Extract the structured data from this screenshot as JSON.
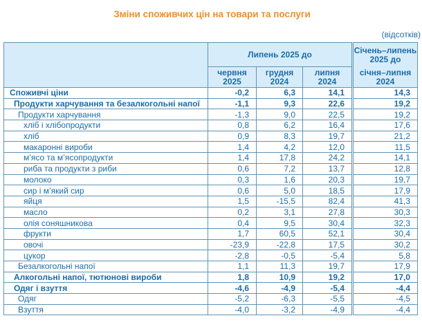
{
  "title": "Зміни споживчих цін на товари та послуги",
  "unit_note": "(відсотків)",
  "columns": {
    "group": {
      "label": "Липень 2025 до",
      "subs": [
        "червня\n2025",
        "грудня\n2024",
        "липня\n2024"
      ]
    },
    "cumulative": {
      "label": "Січень–липень\n2025 до",
      "sub": "січня–липня\n2024"
    }
  },
  "table": {
    "rows": [
      {
        "label": "Споживчі ціни",
        "level": 0,
        "bold": true,
        "values": [
          "-0,2",
          "6,3",
          "14,1",
          "14,3"
        ]
      },
      {
        "label": "Продукти харчування та безалкогольні напої",
        "level": 1,
        "bold": true,
        "values": [
          "-1,1",
          "9,3",
          "22,6",
          "19,2"
        ]
      },
      {
        "label": "Продукти харчування",
        "level": 2,
        "bold": false,
        "values": [
          "-1,3",
          "9,0",
          "22,5",
          "19,2"
        ]
      },
      {
        "label": "хліб і хлібопродукти",
        "level": 3,
        "bold": false,
        "values": [
          "0,8",
          "6,2",
          "16,4",
          "17,6"
        ]
      },
      {
        "label": "хліб",
        "level": 3,
        "bold": false,
        "values": [
          "0,9",
          "8,3",
          "19,7",
          "21,2"
        ]
      },
      {
        "label": "макаронні вироби",
        "level": 3,
        "bold": false,
        "values": [
          "1,4",
          "4,2",
          "12,0",
          "11,5"
        ]
      },
      {
        "label": "м’ясо та м’ясопродукти",
        "level": 3,
        "bold": false,
        "values": [
          "1,4",
          "17,8",
          "24,2",
          "14,1"
        ]
      },
      {
        "label": "риба та продукти з риби",
        "level": 3,
        "bold": false,
        "values": [
          "0,6",
          "7,2",
          "13,7",
          "12,8"
        ]
      },
      {
        "label": "молоко",
        "level": 3,
        "bold": false,
        "values": [
          "0,3",
          "1,6",
          "20,3",
          "19,7"
        ]
      },
      {
        "label": "сир і м’який сир",
        "level": 3,
        "bold": false,
        "values": [
          "0,6",
          "5,0",
          "18,5",
          "17,9"
        ]
      },
      {
        "label": "яйця",
        "level": 3,
        "bold": false,
        "values": [
          "1,5",
          "-15,5",
          "82,4",
          "41,3"
        ]
      },
      {
        "label": "масло",
        "level": 3,
        "bold": false,
        "values": [
          "0,2",
          "3,1",
          "27,8",
          "30,3"
        ]
      },
      {
        "label": "олія соняшникова",
        "level": 3,
        "bold": false,
        "values": [
          "0,4",
          "9,5",
          "30,4",
          "32,3"
        ]
      },
      {
        "label": "фрукти",
        "level": 3,
        "bold": false,
        "values": [
          "1,7",
          "60,5",
          "52,1",
          "30,4"
        ]
      },
      {
        "label": "овочі",
        "level": 3,
        "bold": false,
        "values": [
          "-23,9",
          "-22,8",
          "17,5",
          "30,2"
        ]
      },
      {
        "label": "цукор",
        "level": 3,
        "bold": false,
        "values": [
          "-2,8",
          "-0,5",
          "-5,4",
          "5,8"
        ]
      },
      {
        "label": "Безалкогольні напої",
        "level": 2,
        "bold": false,
        "values": [
          "1,1",
          "11,3",
          "19,7",
          "17,9"
        ]
      },
      {
        "label": "Алкогольні напої, тютюнові вироби",
        "level": 1,
        "bold": true,
        "values": [
          "1,8",
          "10,9",
          "19,2",
          "17,0"
        ]
      },
      {
        "label": "Одяг і взуття",
        "level": 1,
        "bold": true,
        "values": [
          "-4,6",
          "-4,9",
          "-5,4",
          "-4,4"
        ]
      },
      {
        "label": "Одяг",
        "level": 2,
        "bold": false,
        "values": [
          "-5,2",
          "-6,3",
          "-5,5",
          "-4,5"
        ]
      },
      {
        "label": "Взуття",
        "level": 2,
        "bold": false,
        "values": [
          "-4,0",
          "-3,2",
          "-4,9",
          "-4,4"
        ]
      }
    ]
  },
  "colors": {
    "title": "#EE8E2A",
    "text": "#1A6CA8",
    "header_bg": "#D7ECFA",
    "border": "#5E93B5"
  },
  "chart_data": {
    "type": "table",
    "title": "Зміни споживчих цін на товари та послуги",
    "unit": "відсотків",
    "columns": [
      "Липень 2025 до червня 2025",
      "Липень 2025 до грудня 2024",
      "Липень 2025 до липня 2024",
      "Січень–липень 2025 до січня–липня 2024"
    ],
    "rows": [
      [
        "Споживчі ціни",
        -0.2,
        6.3,
        14.1,
        14.3
      ],
      [
        "Продукти харчування та безалкогольні напої",
        -1.1,
        9.3,
        22.6,
        19.2
      ],
      [
        "Продукти харчування",
        -1.3,
        9.0,
        22.5,
        19.2
      ],
      [
        "хліб і хлібопродукти",
        0.8,
        6.2,
        16.4,
        17.6
      ],
      [
        "хліб",
        0.9,
        8.3,
        19.7,
        21.2
      ],
      [
        "макаронні вироби",
        1.4,
        4.2,
        12.0,
        11.5
      ],
      [
        "м’ясо та м’ясопродукти",
        1.4,
        17.8,
        24.2,
        14.1
      ],
      [
        "риба та продукти з риби",
        0.6,
        7.2,
        13.7,
        12.8
      ],
      [
        "молоко",
        0.3,
        1.6,
        20.3,
        19.7
      ],
      [
        "сир і м’який сир",
        0.6,
        5.0,
        18.5,
        17.9
      ],
      [
        "яйця",
        1.5,
        -15.5,
        82.4,
        41.3
      ],
      [
        "масло",
        0.2,
        3.1,
        27.8,
        30.3
      ],
      [
        "олія соняшникова",
        0.4,
        9.5,
        30.4,
        32.3
      ],
      [
        "фрукти",
        1.7,
        60.5,
        52.1,
        30.4
      ],
      [
        "овочі",
        -23.9,
        -22.8,
        17.5,
        30.2
      ],
      [
        "цукор",
        -2.8,
        -0.5,
        -5.4,
        5.8
      ],
      [
        "Безалкогольні напої",
        1.1,
        11.3,
        19.7,
        17.9
      ],
      [
        "Алкогольні напої, тютюнові вироби",
        1.8,
        10.9,
        19.2,
        17.0
      ],
      [
        "Одяг і взуття",
        -4.6,
        -4.9,
        -5.4,
        -4.4
      ],
      [
        "Одяг",
        -5.2,
        -6.3,
        -5.5,
        -4.5
      ],
      [
        "Взуття",
        -4.0,
        -3.2,
        -4.9,
        -4.4
      ]
    ]
  }
}
